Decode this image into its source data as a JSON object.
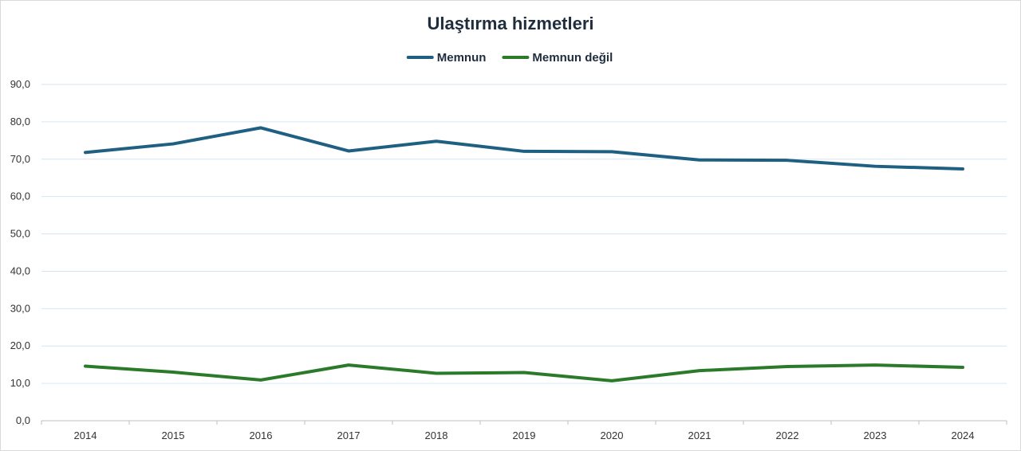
{
  "chart_data": {
    "type": "line",
    "title": "Ulaştırma hizmetleri",
    "xlabel": "",
    "ylabel": "",
    "categories": [
      "2014",
      "2015",
      "2016",
      "2017",
      "2018",
      "2019",
      "2020",
      "2021",
      "2022",
      "2023",
      "2024"
    ],
    "ylim": [
      0,
      90
    ],
    "yticks": [
      "0,0",
      "10,0",
      "20,0",
      "30,0",
      "40,0",
      "50,0",
      "60,0",
      "70,0",
      "80,0",
      "90,0"
    ],
    "grid": true,
    "legend_position": "top-center",
    "series": [
      {
        "name": "Memnun",
        "color": "#1f5f82",
        "values": [
          71.8,
          74.1,
          78.4,
          72.2,
          74.8,
          72.1,
          72.0,
          69.8,
          69.7,
          68.1,
          67.4
        ]
      },
      {
        "name": "Memnun değil",
        "color": "#2a7a2a",
        "values": [
          14.6,
          13.0,
          10.9,
          14.9,
          12.7,
          12.9,
          10.7,
          13.4,
          14.5,
          14.9,
          14.3
        ]
      }
    ]
  }
}
